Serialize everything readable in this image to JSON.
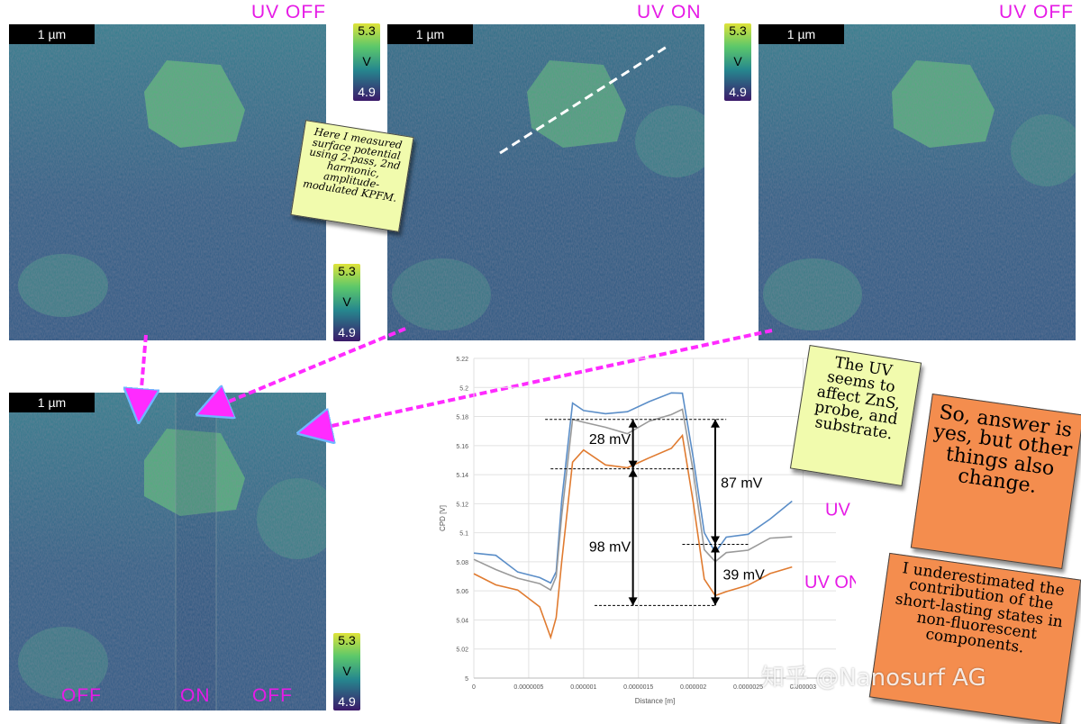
{
  "maps": [
    {
      "id": "top-left",
      "scale_label": "1 µm",
      "title": "UV OFF"
    },
    {
      "id": "top-middle",
      "scale_label": "1 µm",
      "title": "UV ON"
    },
    {
      "id": "top-right",
      "scale_label": "1 µm",
      "title": "UV OFF"
    },
    {
      "id": "bottom-left",
      "scale_label": "1 µm",
      "segment_labels": [
        "OFF",
        "ON",
        "OFF"
      ]
    }
  ],
  "colorbars": [
    {
      "max": "5.3",
      "unit": "V",
      "min": "4.9"
    },
    {
      "max": "5.3",
      "unit": "V",
      "min": "4.9"
    },
    {
      "max": "5.3",
      "unit": "V",
      "min": "4.9"
    },
    {
      "max": "5.3",
      "unit": "V",
      "min": "4.9"
    }
  ],
  "notes": {
    "method": "Here I measured surface potential using 2-pass, 2nd harmonic, amplitude-modulated KPFM.",
    "uv_effect": "The UV seems to affect ZnS, probe, and substrate.",
    "answer": "So, answer is yes, but other things also change.",
    "underestimated": "I underestimated the contribution of the short-lasting states in non-fluorescent components."
  },
  "colors": {
    "uv_off": "#5b8ec8",
    "uv_off_2": "#9a9a9a",
    "uv_on": "#e07b30",
    "accent": "#e61be6",
    "note_yellow": "#f1fbad",
    "note_orange": "#f48d4e"
  },
  "chart_data": {
    "type": "line",
    "xlabel": "Distance [m]",
    "ylabel": "CPD [V]",
    "xlim": [
      0,
      3.3e-06
    ],
    "ylim": [
      5,
      5.22
    ],
    "xticks": [
      "0",
      "0.0000005",
      "0.000001",
      "0.0000015",
      "0.000002",
      "0.0000025",
      "0.000003"
    ],
    "yticks": [
      "5",
      "5.02",
      "5.04",
      "5.06",
      "5.08",
      "5.1",
      "5.12",
      "5.14",
      "5.16",
      "5.18",
      "5.2",
      "5.22"
    ],
    "x": [
      0,
      2e-07,
      4e-07,
      6e-07,
      7e-07,
      7.5e-07,
      8e-07,
      9e-07,
      1e-06,
      1.2e-06,
      1.4e-06,
      1.6e-06,
      1.8e-06,
      1.9e-06,
      2e-06,
      2.1e-06,
      2.2e-06,
      2.3e-06,
      2.5e-06,
      2.7e-06,
      2.9e-06
    ],
    "series": [
      {
        "label": "UV OFF",
        "values": [
          5.086,
          5.083,
          5.075,
          5.068,
          5.065,
          5.075,
          5.12,
          5.19,
          5.185,
          5.18,
          5.185,
          5.19,
          5.195,
          5.198,
          5.15,
          5.1,
          5.088,
          5.095,
          5.1,
          5.11,
          5.12
        ]
      },
      {
        "label": "",
        "values": [
          5.08,
          5.075,
          5.07,
          5.063,
          5.062,
          5.07,
          5.11,
          5.18,
          5.175,
          5.172,
          5.17,
          5.175,
          5.182,
          5.186,
          5.14,
          5.09,
          5.08,
          5.085,
          5.09,
          5.095,
          5.097
        ]
      },
      {
        "label": "UV ON",
        "values": [
          5.07,
          5.066,
          5.06,
          5.048,
          5.03,
          5.04,
          5.08,
          5.15,
          5.155,
          5.148,
          5.145,
          5.15,
          5.16,
          5.166,
          5.12,
          5.07,
          5.055,
          5.06,
          5.065,
          5.07,
          5.078
        ]
      }
    ],
    "annotations": [
      "28 mV",
      "87 mV",
      "98 mV",
      "39 mV"
    ],
    "series_labels": [
      "UV OFF",
      "UV ON"
    ]
  },
  "watermark": "知乎 @Nanosurf AG"
}
